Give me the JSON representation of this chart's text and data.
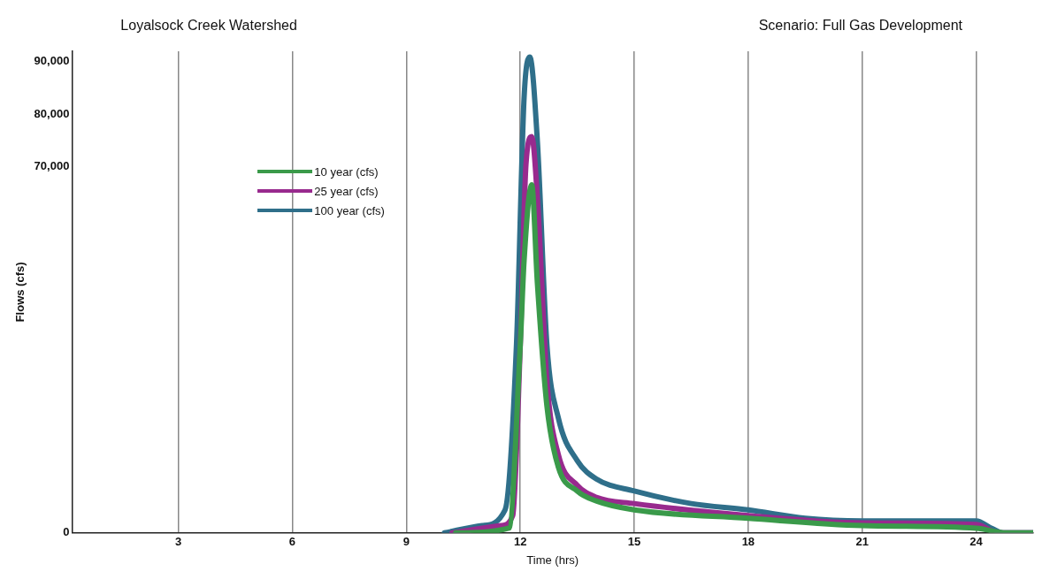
{
  "chart_data": {
    "type": "line",
    "title": "Loyalsock Creek Watershed",
    "subtitle": "Scenario: Full Gas Development",
    "xlabel": "Time (hrs)",
    "ylabel": "Flows (cfs)",
    "xlim": [
      0.2,
      25.5
    ],
    "xticks": [
      3,
      6,
      9,
      12,
      15,
      18,
      21,
      24
    ],
    "ylim": [
      0,
      92000
    ],
    "yticks": [
      0,
      {
        "value": 70000,
        "label": "70,000"
      },
      {
        "value": 80000,
        "label": "80,000"
      },
      {
        "value": 90000,
        "label": "90,000"
      }
    ],
    "grid": "x",
    "legend": "top left",
    "marker": "none",
    "line_style": "solid",
    "series": [
      {
        "name": "10 year (cfs)",
        "color": "#3a9a4a",
        "x": [
          10.3,
          11.7,
          12.0,
          12.1,
          12.3,
          12.45,
          12.7,
          13,
          13.5,
          14,
          15,
          18,
          21,
          24,
          24.8,
          25.5
        ],
        "values": [
          0,
          900,
          36000,
          52000,
          66500,
          47700,
          24300,
          12600,
          8000,
          6100,
          4400,
          2800,
          1400,
          900,
          0,
          0
        ]
      },
      {
        "name": "25 year (cfs)",
        "color": "#982a8e",
        "x": [
          10.2,
          11.5,
          11.8,
          12.0,
          12.15,
          12.3,
          12.45,
          12.7,
          13,
          13.5,
          14,
          15,
          18,
          21,
          24,
          24.6,
          25.5
        ],
        "values": [
          0,
          1400,
          3300,
          36000,
          70400,
          75700,
          64000,
          29000,
          15000,
          9100,
          6800,
          5600,
          3300,
          1900,
          1600,
          0,
          0
        ]
      },
      {
        "name": "100 year (cfs)",
        "color": "#2f6f8a",
        "x": [
          10,
          11,
          11.6,
          11.9,
          12.1,
          12.25,
          12.45,
          12.7,
          13,
          13.5,
          14,
          15,
          16.5,
          18,
          19.5,
          21,
          24,
          24.4,
          24.7,
          25.5
        ],
        "values": [
          0,
          1400,
          4400,
          36000,
          83100,
          90900,
          74800,
          36000,
          22000,
          13800,
          10300,
          8000,
          5600,
          4400,
          2800,
          2300,
          2300,
          900,
          0,
          0
        ]
      }
    ]
  }
}
